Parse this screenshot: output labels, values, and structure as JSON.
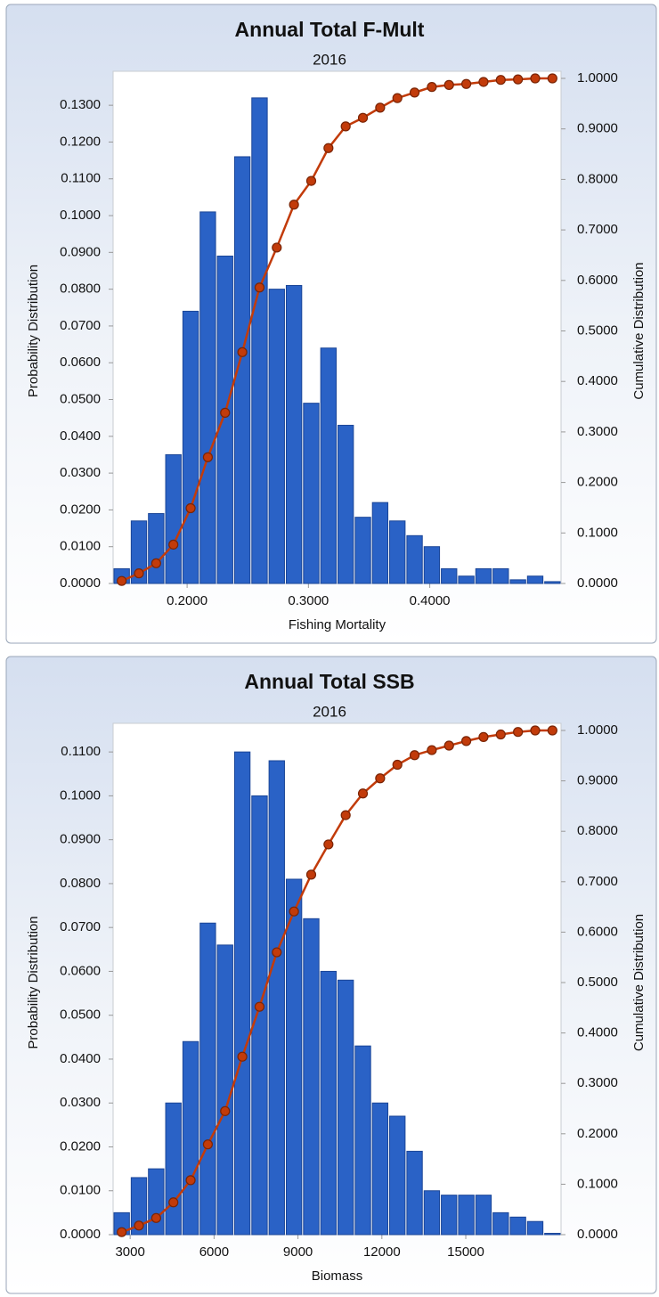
{
  "chart_data": [
    {
      "type": "histogram",
      "title": "Annual Total F-Mult",
      "subtitle": "2016",
      "xlabel": "Fishing Mortality",
      "ylabel": "Probability Distribution",
      "y2label": "Cumulative Distribution",
      "bins": [
        0.139,
        0.1532,
        0.1674,
        0.1816,
        0.1958,
        0.21,
        0.2242,
        0.2384,
        0.2526,
        0.2668,
        0.281,
        0.2952,
        0.3094,
        0.3236,
        0.3378,
        0.352,
        0.3662,
        0.3804,
        0.3946,
        0.4088,
        0.423,
        0.4372,
        0.4514,
        0.4656,
        0.4798,
        0.494,
        0.5082
      ],
      "values": [
        0.004,
        0.017,
        0.019,
        0.035,
        0.074,
        0.101,
        0.089,
        0.116,
        0.132,
        0.08,
        0.081,
        0.049,
        0.064,
        0.043,
        0.018,
        0.022,
        0.017,
        0.013,
        0.01,
        0.004,
        0.002,
        0.004,
        0.004,
        0.001,
        0.002,
        0.0005
      ],
      "color": "#2a62c6",
      "line": {
        "axis": "y2",
        "color": "#c23b0a",
        "x": [
          0.1461,
          0.1603,
          0.1745,
          0.1887,
          0.2029,
          0.2171,
          0.2313,
          0.2455,
          0.2597,
          0.2739,
          0.2881,
          0.3023,
          0.3165,
          0.3307,
          0.3449,
          0.3591,
          0.3733,
          0.3875,
          0.4017,
          0.4159,
          0.4301,
          0.4443,
          0.4585,
          0.4727,
          0.4869,
          0.5011
        ],
        "values": [
          0.005,
          0.02,
          0.04,
          0.077,
          0.149,
          0.25,
          0.338,
          0.458,
          0.586,
          0.665,
          0.75,
          0.797,
          0.862,
          0.905,
          0.922,
          0.942,
          0.961,
          0.972,
          0.983,
          0.987,
          0.989,
          0.993,
          0.997,
          0.998,
          1.0,
          1.0
        ]
      },
      "xlim": [
        0.139,
        0.5082
      ],
      "ylim": [
        0,
        0.1373
      ],
      "y2lim": [
        0,
        1
      ],
      "xticks": [
        {
          "value": 0.2,
          "label": "0.2000"
        },
        {
          "value": 0.3,
          "label": "0.3000"
        },
        {
          "value": 0.4,
          "label": "0.4000"
        }
      ],
      "yticks": [
        {
          "value": 0,
          "label": "0.0000"
        },
        {
          "value": 0.01,
          "label": "0.0100"
        },
        {
          "value": 0.02,
          "label": "0.0200"
        },
        {
          "value": 0.03,
          "label": "0.0300"
        },
        {
          "value": 0.04,
          "label": "0.0400"
        },
        {
          "value": 0.05,
          "label": "0.0500"
        },
        {
          "value": 0.06,
          "label": "0.0600"
        },
        {
          "value": 0.07,
          "label": "0.0700"
        },
        {
          "value": 0.08,
          "label": "0.0800"
        },
        {
          "value": 0.09,
          "label": "0.0900"
        },
        {
          "value": 0.1,
          "label": "0.1000"
        },
        {
          "value": 0.11,
          "label": "0.1100"
        },
        {
          "value": 0.12,
          "label": "0.1200"
        },
        {
          "value": 0.13,
          "label": "0.1300"
        }
      ],
      "y2ticks": [
        {
          "value": 0,
          "label": "0.0000"
        },
        {
          "value": 0.1,
          "label": "0.1000"
        },
        {
          "value": 0.2,
          "label": "0.2000"
        },
        {
          "value": 0.3,
          "label": "0.3000"
        },
        {
          "value": 0.4,
          "label": "0.4000"
        },
        {
          "value": 0.5,
          "label": "0.5000"
        },
        {
          "value": 0.6,
          "label": "0.6000"
        },
        {
          "value": 0.7,
          "label": "0.7000"
        },
        {
          "value": 0.8,
          "label": "0.8000"
        },
        {
          "value": 0.9,
          "label": "0.9000"
        },
        {
          "value": 1,
          "label": "1.0000"
        }
      ]
    },
    {
      "type": "histogram",
      "title": "Annual Total SSB",
      "subtitle": "2016",
      "xlabel": "Biomass",
      "ylabel": "Probability Distribution",
      "y2label": "Cumulative Distribution",
      "bins": [
        2390,
        3006,
        3622,
        4238,
        4854,
        5470,
        6086,
        6702,
        7318,
        7934,
        8550,
        9166,
        9782,
        10398,
        11014,
        11630,
        12246,
        12862,
        13478,
        14094,
        14710,
        15326,
        15942,
        16558,
        17174,
        17790,
        18406
      ],
      "values": [
        0.005,
        0.013,
        0.015,
        0.03,
        0.044,
        0.071,
        0.066,
        0.11,
        0.1,
        0.108,
        0.081,
        0.072,
        0.06,
        0.058,
        0.043,
        0.03,
        0.027,
        0.019,
        0.01,
        0.009,
        0.009,
        0.009,
        0.005,
        0.004,
        0.003,
        0.0003
      ],
      "color": "#2a62c6",
      "line": {
        "axis": "y2",
        "color": "#c23b0a",
        "x": [
          2698,
          3314,
          3930,
          4546,
          5162,
          5778,
          6394,
          7010,
          7626,
          8242,
          8858,
          9474,
          10090,
          10706,
          11322,
          11938,
          12554,
          13170,
          13786,
          14402,
          15018,
          15634,
          16250,
          16866,
          17482,
          18098
        ],
        "values": [
          0.005,
          0.018,
          0.033,
          0.064,
          0.108,
          0.179,
          0.245,
          0.353,
          0.452,
          0.56,
          0.641,
          0.714,
          0.774,
          0.832,
          0.875,
          0.905,
          0.932,
          0.951,
          0.961,
          0.97,
          0.979,
          0.987,
          0.992,
          0.997,
          1.0,
          1.0
        ]
      },
      "xlim": [
        2390,
        18406
      ],
      "ylim": [
        0,
        0.1149
      ],
      "y2lim": [
        0,
        1
      ],
      "xticks": [
        3000,
        6000,
        9000,
        12000,
        15000
      ],
      "yticks": [
        {
          "value": 0,
          "label": "0.0000"
        },
        {
          "value": 0.01,
          "label": "0.0100"
        },
        {
          "value": 0.02,
          "label": "0.0200"
        },
        {
          "value": 0.03,
          "label": "0.0300"
        },
        {
          "value": 0.04,
          "label": "0.0400"
        },
        {
          "value": 0.05,
          "label": "0.0500"
        },
        {
          "value": 0.06,
          "label": "0.0600"
        },
        {
          "value": 0.07,
          "label": "0.0700"
        },
        {
          "value": 0.08,
          "label": "0.0800"
        },
        {
          "value": 0.09,
          "label": "0.0900"
        },
        {
          "value": 0.1,
          "label": "0.1000"
        },
        {
          "value": 0.11,
          "label": "0.1100"
        }
      ],
      "y2ticks": [
        {
          "value": 0,
          "label": "0.0000"
        },
        {
          "value": 0.1,
          "label": "0.1000"
        },
        {
          "value": 0.2,
          "label": "0.2000"
        },
        {
          "value": 0.3,
          "label": "0.3000"
        },
        {
          "value": 0.4,
          "label": "0.4000"
        },
        {
          "value": 0.5,
          "label": "0.5000"
        },
        {
          "value": 0.6,
          "label": "0.6000"
        },
        {
          "value": 0.7,
          "label": "0.7000"
        },
        {
          "value": 0.8,
          "label": "0.8000"
        },
        {
          "value": 0.9,
          "label": "0.9000"
        },
        {
          "value": 1,
          "label": "1.0000"
        }
      ]
    }
  ]
}
